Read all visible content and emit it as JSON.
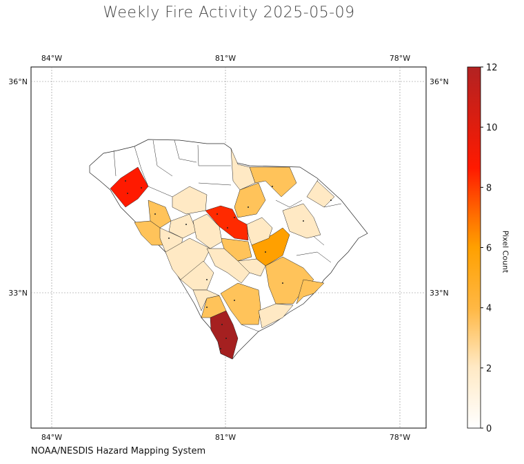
{
  "map": {
    "title": "Weekly Fire Activity 2025-05-09",
    "credit": "NOAA/NESDIS Hazard Mapping System",
    "colorbar": {
      "label": "Pixel Count",
      "ticks": [
        "0",
        "2",
        "4",
        "6",
        "8",
        "10",
        "12"
      ],
      "min": 0,
      "max": 12,
      "colors": [
        "#ffffff",
        "#ffe9c4",
        "#ffc35a",
        "#ffa500",
        "#ff6a00",
        "#ff1a00",
        "#b22222"
      ]
    },
    "lon_labels": [
      "84°W",
      "81°W",
      "78°W"
    ],
    "lat_labels": [
      "36°N",
      "33°N"
    ],
    "gridlines": true
  }
}
